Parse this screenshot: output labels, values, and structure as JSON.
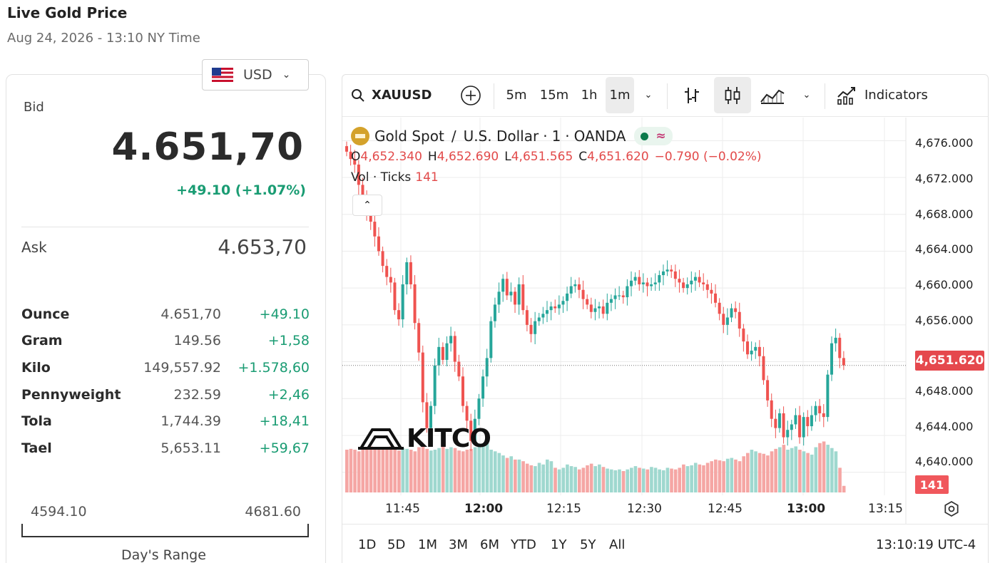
{
  "page": {
    "title": "Live Gold Price",
    "subtitle": "Aug 24, 2026 - 13:10 NY Time"
  },
  "currency": {
    "selected": "USD"
  },
  "quote": {
    "bid_label": "Bid",
    "bid": "4.651,70",
    "change": "+49.10 (+1.07%)",
    "ask_label": "Ask",
    "ask": "4.653,70"
  },
  "units": [
    {
      "name": "Ounce",
      "price": "4.651,70",
      "change": "+49.10"
    },
    {
      "name": "Gram",
      "price": "149.56",
      "change": "+1,58"
    },
    {
      "name": "Kilo",
      "price": "149,557.92",
      "change": "+1.578,60"
    },
    {
      "name": "Pennyweight",
      "price": "232.59",
      "change": "+2,46"
    },
    {
      "name": "Tola",
      "price": "1,744.39",
      "change": "+18,41"
    },
    {
      "name": "Tael",
      "price": "5,653.11",
      "change": "+59,67"
    }
  ],
  "day_range": {
    "low": "4594.10",
    "high": "4681.60",
    "caption": "Day's Range"
  },
  "toolbar": {
    "symbol": "XAUUSD",
    "intervals": [
      "5m",
      "15m",
      "1h",
      "1m"
    ],
    "active_interval": "1m",
    "indicators_label": "Indicators"
  },
  "series": {
    "title": "Gold Spot",
    "separator": "/",
    "quote_name": "U.S. Dollar",
    "interval": "1",
    "source": "OANDA",
    "open_label": "O",
    "open": "4,652.340",
    "high_label": "H",
    "high": "4,652.690",
    "low_label": "L",
    "low": "4,651.565",
    "close_label": "C",
    "close": "4,651.620",
    "change": "−0.790 (−0.02%)",
    "vol_label": "Vol · Ticks",
    "vol_value": "141"
  },
  "price_axis": [
    "4,676.000",
    "4,672.000",
    "4,668.000",
    "4,664.000",
    "4,660.000",
    "4,656.000",
    "4,648.000",
    "4,644.000",
    "4,640.000"
  ],
  "last_price_tag": "4,651.620",
  "volume_tag": "141",
  "time_axis": [
    "11:45",
    "12:00",
    "12:15",
    "12:30",
    "12:45",
    "13:00",
    "13:15"
  ],
  "range_buttons": [
    "1D",
    "5D",
    "1M",
    "3M",
    "6M",
    "YTD",
    "1Y",
    "5Y",
    "All"
  ],
  "clock": "13:10:19 UTC-4",
  "logo_text": "KITCO",
  "colors": {
    "up": "#26a69a",
    "down": "#ef5350",
    "up_volume": "#9fd8cf",
    "down_volume": "#f5a6a4",
    "bid_change": "#1a9c73"
  },
  "chart_data": {
    "type": "candlestick",
    "y_range": [
      4637.5,
      4678.5
    ],
    "closes": [
      4674.8,
      4674.0,
      4673.4,
      4671.2,
      4669.6,
      4668.0,
      4667.2,
      4665.6,
      4664.0,
      4662.4,
      4661.2,
      4660.6,
      4657.6,
      4656.6,
      4660.4,
      4662.8,
      4660.4,
      4656.2,
      4653.0,
      4647.6,
      4644.8,
      4647.2,
      4651.6,
      4653.6,
      4652.2,
      4654.0,
      4654.8,
      4652.0,
      4650.4,
      4647.2,
      4645.6,
      4643.4,
      4645.8,
      4648.0,
      4650.4,
      4652.4,
      4656.4,
      4658.2,
      4659.6,
      4661.0,
      4659.2,
      4659.6,
      4658.2,
      4660.4,
      4657.6,
      4656.0,
      4655.0,
      4656.4,
      4656.8,
      4657.2,
      4657.6,
      4658.0,
      4657.8,
      4658.2,
      4658.6,
      4659.4,
      4660.2,
      4660.4,
      4659.8,
      4658.8,
      4658.2,
      4657.4,
      4657.8,
      4658.0,
      4657.2,
      4658.4,
      4658.8,
      4659.2,
      4659.2,
      4659.0,
      4660.2,
      4660.8,
      4661.2,
      4660.4,
      4660.6,
      4660.2,
      4660.4,
      4660.6,
      4661.4,
      4661.8,
      4662.0,
      4661.8,
      4661.0,
      4660.6,
      4660.0,
      4660.4,
      4660.8,
      4661.2,
      4660.6,
      4660.4,
      4659.8,
      4659.4,
      4658.4,
      4657.2,
      4656.0,
      4656.8,
      4657.8,
      4657.4,
      4655.6,
      4654.2,
      4652.8,
      4653.2,
      4653.6,
      4652.6,
      4650.0,
      4647.8,
      4645.8,
      4644.8,
      4646.4,
      4643.8,
      4644.6,
      4645.2,
      4646.2,
      4643.8,
      4646.0,
      4645.0,
      4646.2,
      4647.2,
      4646.4,
      4646.0,
      4650.6,
      4654.0,
      4654.6,
      4652.4,
      4651.6
    ],
    "volumes": [
      52,
      53,
      52,
      50,
      54,
      55,
      56,
      52,
      54,
      52,
      53,
      56,
      52,
      51,
      54,
      53,
      52,
      50,
      55,
      56,
      53,
      51,
      52,
      54,
      56,
      53,
      55,
      54,
      51,
      50,
      52,
      53,
      55,
      57,
      58,
      62,
      52,
      50,
      48,
      45,
      42,
      44,
      40,
      40,
      38,
      35,
      33,
      32,
      36,
      34,
      40,
      38,
      30,
      28,
      30,
      34,
      32,
      31,
      28,
      30,
      33,
      35,
      32,
      34,
      31,
      29,
      28,
      27,
      28,
      26,
      28,
      30,
      32,
      30,
      29,
      28,
      31,
      30,
      28,
      27,
      30,
      29,
      28,
      30,
      34,
      32,
      33,
      36,
      34,
      33,
      36,
      38,
      40,
      39,
      38,
      41,
      42,
      40,
      38,
      44,
      48,
      52,
      50,
      48,
      47,
      45,
      50,
      53,
      55,
      58,
      52,
      54,
      56,
      52,
      50,
      48,
      46,
      55,
      60,
      62,
      58,
      54,
      50,
      30,
      8
    ],
    "time_labels": [
      "11:45",
      "12:00",
      "12:15",
      "12:30",
      "12:45",
      "13:00",
      "13:15"
    ]
  }
}
